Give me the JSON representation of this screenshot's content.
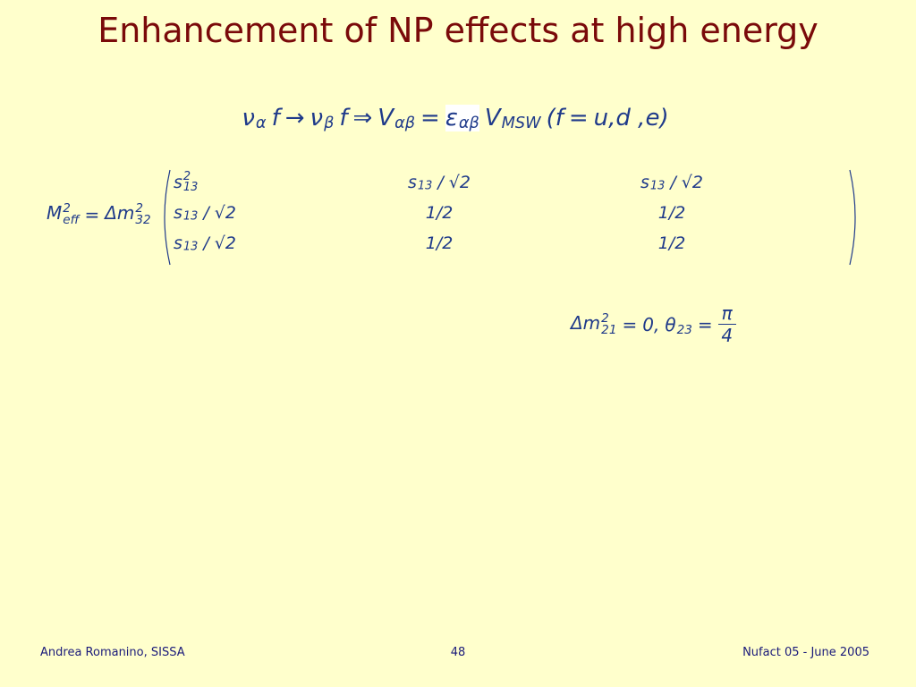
{
  "header": {
    "title": "Enhancement of NP effects at high energy"
  },
  "equation1": [
    {
      "text": "ν",
      "sub": "α"
    },
    {
      "text": "f"
    },
    {
      "text": "→"
    },
    {
      "text": "ν",
      "sub": "β"
    },
    {
      "text": "f"
    },
    {
      "text": "⇒"
    },
    {
      "text": "V",
      "sub": "αβ"
    },
    {
      "text": "="
    },
    {
      "text": "ε",
      "sub": "αβ",
      "highlight": true
    },
    {
      "text": "V",
      "sub": "MSW"
    },
    {
      "text": "(f"
    },
    {
      "text": "="
    },
    {
      "text": "u,d ,e)"
    }
  ],
  "matrix_lhs": [
    {
      "text": "M",
      "sup": "2",
      "sub": "eff"
    },
    {
      "text": "="
    },
    {
      "text": "Δm",
      "sup": "2",
      "sub": "32"
    }
  ],
  "matrix": {
    "rows": [
      [
        [
          {
            "text": "s",
            "sup": "2",
            "sub": "13"
          }
        ],
        [
          {
            "text": "s",
            "sub": "13"
          },
          {
            "text": "/ √2"
          }
        ],
        [
          {
            "text": "s",
            "sub": "13"
          },
          {
            "text": "/ √2"
          }
        ]
      ],
      [
        [
          {
            "text": "s",
            "sub": "13"
          },
          {
            "text": "/ √2"
          }
        ],
        [
          {
            "text": "1/2"
          }
        ],
        [
          {
            "text": "1/2"
          }
        ]
      ],
      [
        [
          {
            "text": "s",
            "sub": "13"
          },
          {
            "text": "/ √2"
          }
        ],
        [
          {
            "text": "1/2"
          }
        ],
        [
          {
            "text": "1/2"
          }
        ]
      ]
    ]
  },
  "equation3": [
    {
      "text": "Δm",
      "sup": "2",
      "sub": "21"
    },
    {
      "text": "="
    },
    {
      "text": "0,"
    },
    {
      "text": "θ",
      "sub": "23"
    },
    {
      "text": "="
    },
    {
      "num": "π",
      "den": "4"
    }
  ],
  "footer": {
    "author": "Andrea Romanino, SISSA",
    "page": "48",
    "event": "Nufact 05 - June 2005"
  }
}
